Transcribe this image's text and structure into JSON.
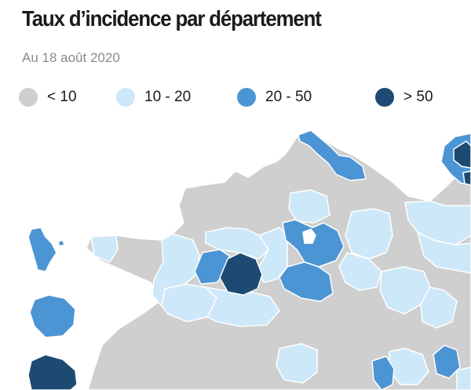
{
  "header": {
    "title": "Taux d’incidence par département",
    "subtitle": "Au 18 août 2020"
  },
  "legend": [
    {
      "label": "< 10",
      "color": "#cfcfcf"
    },
    {
      "label": "10 - 20",
      "color": "#cde8f8"
    },
    {
      "label": "20 - 50",
      "color": "#4c95d4"
    },
    {
      "label": "> 50",
      "color": "#1d4a72"
    }
  ],
  "colors": {
    "lt10": "#cfcfcf",
    "c10_20": "#cde8f8",
    "c20_50": "#4c95d4",
    "gt50": "#1d4a72"
  }
}
